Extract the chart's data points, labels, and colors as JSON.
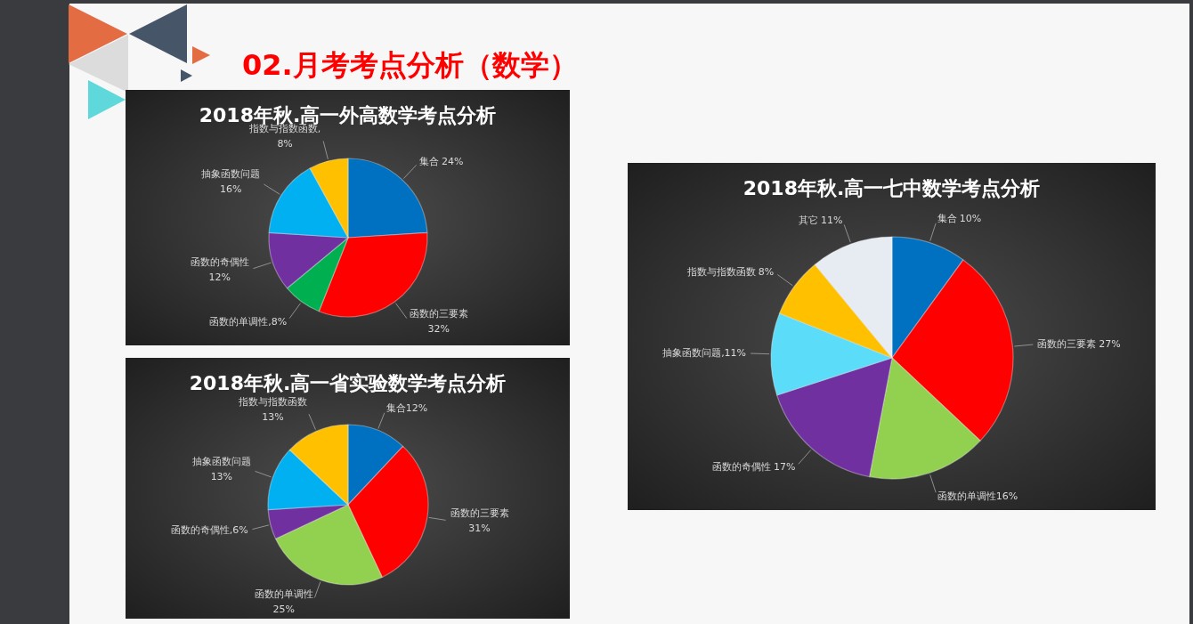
{
  "chart_data": [
    {
      "type": "pie",
      "title": "2018年秋.高一外高数学考点分析",
      "annotations": [
        "02.月考考点分析（数学）"
      ],
      "categories": [
        "集合",
        "函数的三要素",
        "函数的单调性",
        "函数的奇偶性",
        "抽象函数问题",
        "指数与指数函数"
      ],
      "values": [
        24,
        32,
        8,
        12,
        16,
        8
      ],
      "value_labels": [
        "24%",
        "32%",
        ",8%",
        "12%",
        "16%",
        ",8%"
      ],
      "colors": [
        "#0070c0",
        "#ff0000",
        "#00b050",
        "#7030a0",
        "#00b0f0",
        "#ffc000"
      ]
    },
    {
      "type": "pie",
      "title": "2018年秋.高一省实验数学考点分析",
      "categories": [
        "集合",
        "函数的三要素",
        "函数的单调性",
        "函数的奇偶性",
        "抽象函数问题",
        "指数与指数函数"
      ],
      "values": [
        12,
        31,
        25,
        6,
        13,
        13
      ],
      "value_labels": [
        "12%",
        "31%",
        "25%",
        ",6%",
        "13%",
        "13%"
      ],
      "colors": [
        "#0070c0",
        "#ff0000",
        "#92d050",
        "#7030a0",
        "#00b0f0",
        "#ffc000"
      ]
    },
    {
      "type": "pie",
      "title": "2018年秋.高一七中数学考点分析",
      "categories": [
        "集合",
        "函数的三要素",
        "函数的单调性",
        "函数的奇偶性",
        "抽象函数问题",
        "指数与指数函数",
        "其它"
      ],
      "values": [
        10,
        27,
        16,
        17,
        11,
        8,
        11
      ],
      "value_labels": [
        "10%",
        "27%",
        "16%",
        "17%",
        ",11%",
        "8%",
        "11%"
      ],
      "colors": [
        "#0070c0",
        "#ff0000",
        "#92d050",
        "#7030a0",
        "#5bdcf8",
        "#ffc000",
        "#e7ebf2"
      ]
    }
  ]
}
